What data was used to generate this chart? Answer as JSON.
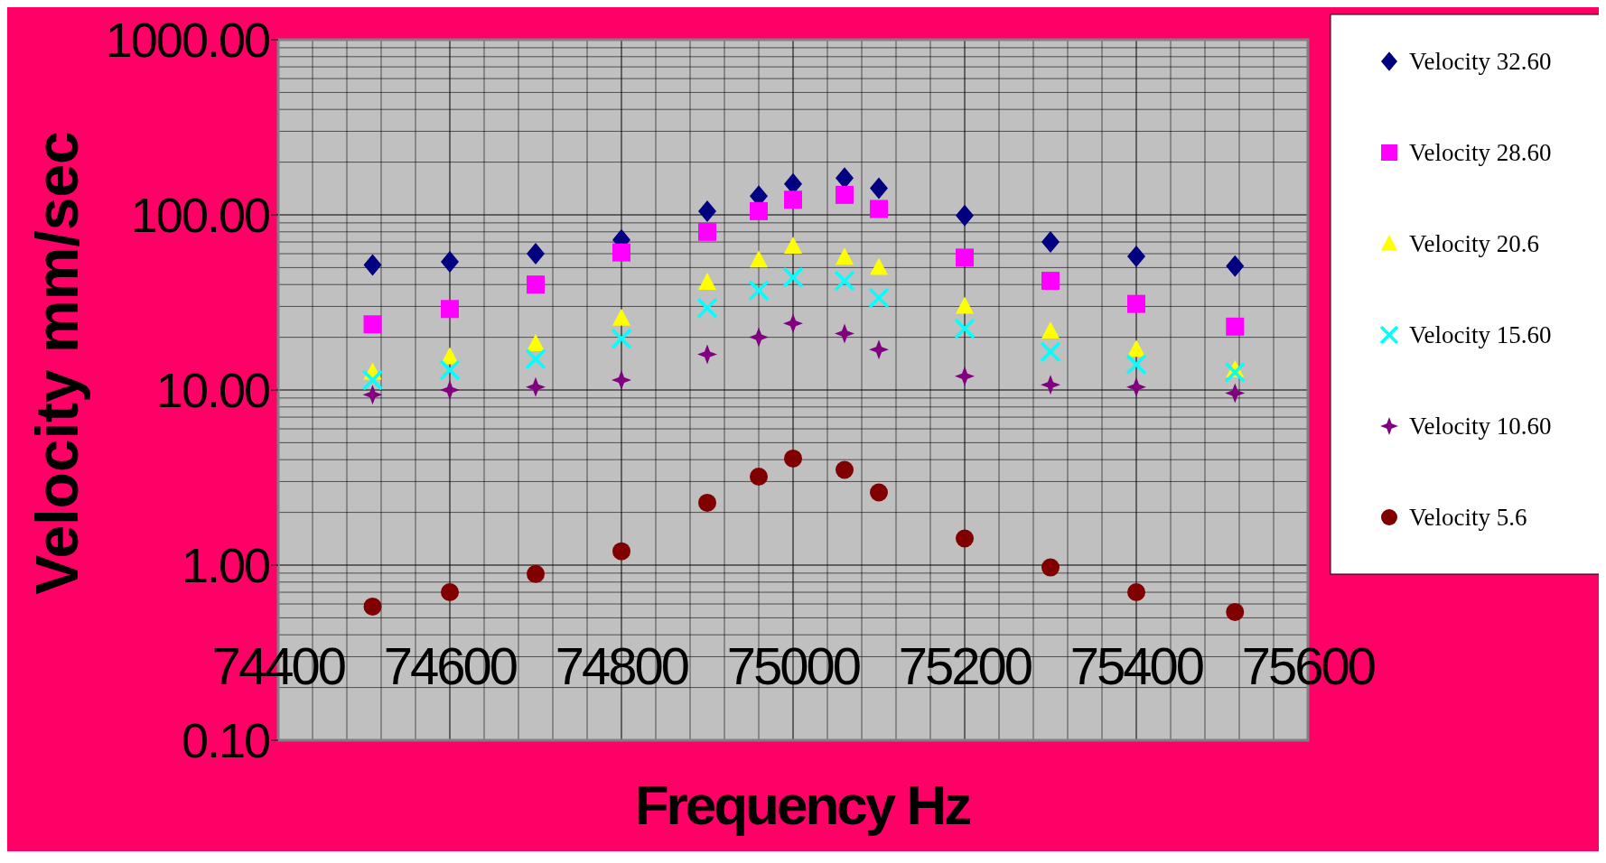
{
  "chart_data": {
    "type": "scatter",
    "xlabel": "Frequency Hz",
    "ylabel": "Velocity mm/sec",
    "log": "y",
    "grid": true,
    "legend": "right",
    "x": [
      74510,
      74600,
      74700,
      74800,
      74900,
      74960,
      75000,
      75060,
      75100,
      75200,
      75300,
      75400,
      75515
    ],
    "xlim": [
      74400,
      75600
    ],
    "xticks": [
      74400,
      74600,
      74800,
      75000,
      75200,
      75400,
      75600
    ],
    "ylim": [
      0.1,
      1000
    ],
    "yticks": [
      {
        "value": 0.1,
        "label": "0.10"
      },
      {
        "value": 1,
        "label": "1.00"
      },
      {
        "value": 10,
        "label": "10.00"
      },
      {
        "value": 100,
        "label": "100.00"
      },
      {
        "value": 1000,
        "label": "1000.00"
      }
    ],
    "series": [
      {
        "name": "Velocity 32.60",
        "color": "#000080",
        "marker": "diamond",
        "values": [
          51.7,
          54,
          60,
          72,
          105,
          128,
          150,
          162,
          142,
          99,
          70,
          58,
          51
        ]
      },
      {
        "name": "Velocity 28.60",
        "color": "#ff00ff",
        "marker": "square",
        "values": [
          23.7,
          29,
          40,
          61,
          80,
          105,
          122,
          130,
          108,
          57,
          42,
          31,
          23
        ]
      },
      {
        "name": "Velocity 20.6",
        "color": "#ffff00",
        "marker": "triangle",
        "values": [
          12.6,
          15.4,
          18.3,
          25.6,
          41,
          55,
          66,
          57,
          50,
          30,
          21.6,
          17,
          13
        ]
      },
      {
        "name": "Velocity 15.60",
        "color": "#00ffff",
        "marker": "cross",
        "values": [
          11.4,
          13,
          15,
          19.6,
          29.4,
          37,
          44,
          42,
          33.6,
          22.4,
          16.5,
          14,
          12.6
        ]
      },
      {
        "name": "Velocity 10.60",
        "color": "#800080",
        "marker": "star",
        "values": [
          9.4,
          10,
          10.4,
          11.4,
          16,
          20,
          24,
          21,
          17,
          12,
          10.7,
          10.4,
          9.6
        ]
      },
      {
        "name": "Velocity 5.6",
        "color": "#800000",
        "marker": "circle",
        "values": [
          0.58,
          0.7,
          0.89,
          1.2,
          2.27,
          3.2,
          4.06,
          3.5,
          2.6,
          1.42,
          0.97,
          0.7,
          0.54
        ]
      }
    ]
  }
}
